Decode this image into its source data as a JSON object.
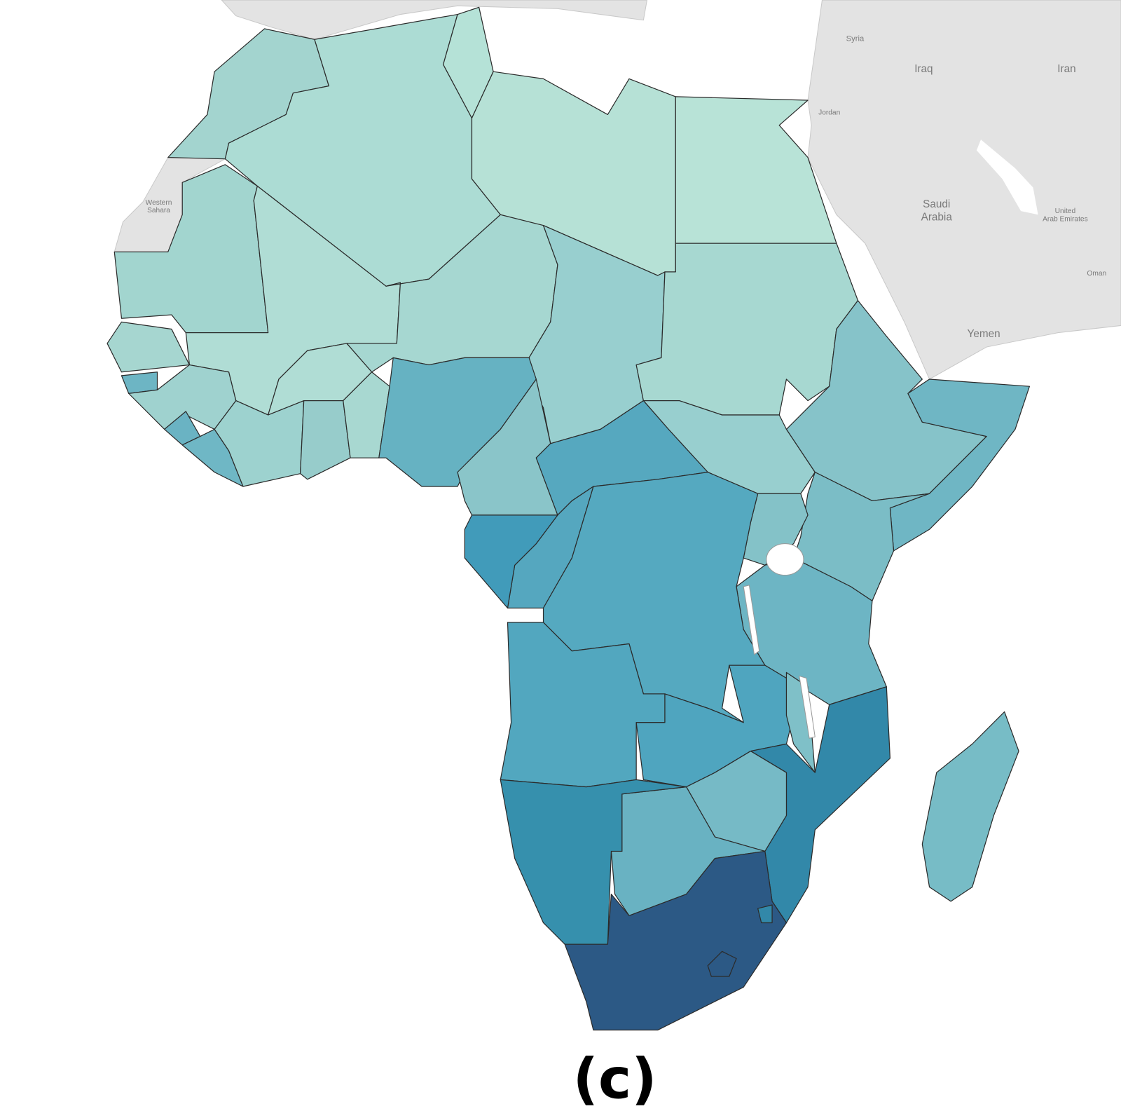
{
  "map": {
    "labels": {
      "syria": "Syria",
      "iraq": "Iraq",
      "iran": "Iran",
      "jordan": "Jordan",
      "saudi_arabia": [
        "Saudi",
        "Arabia"
      ],
      "uae": [
        "United",
        "Arab Emirates"
      ],
      "oman": "Oman",
      "yemen": "Yemen",
      "western_sahara": [
        "Western",
        "Sahara"
      ]
    }
  },
  "caption": "(c)"
}
